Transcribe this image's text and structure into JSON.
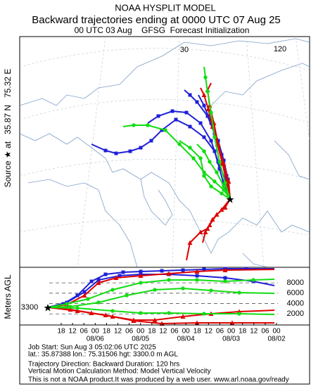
{
  "header": {
    "title": "NOAA HYSPLIT MODEL",
    "subtitle": "Backward trajectories ending at 0000 UTC 07 Aug 25",
    "initialization": "00 UTC 03 Aug    GFSG  Forecast Initialization"
  },
  "source_label": "Source ★ at   35.87 N   75.32 E",
  "map": {
    "grid_labels": [
      "30",
      "120"
    ]
  },
  "vertical_panel": {
    "axis_label": "Meters AGL",
    "start_height_label": "3300",
    "ylim": [
      0,
      11000
    ],
    "yticks": [
      2000,
      4000,
      6000,
      8000
    ],
    "hours": [
      "18",
      "12",
      "06",
      "00",
      "18",
      "12",
      "06",
      "00",
      "18",
      "12",
      "06",
      "00",
      "18",
      "12",
      "06",
      "00",
      "18",
      "12",
      "06",
      "00"
    ],
    "dates": [
      "08/06",
      "08/05",
      "08/04",
      "08/03",
      "08/02"
    ]
  },
  "footer": {
    "lines": [
      "Job Start: Sun Aug  3 05:02:06 UTC 2025",
      "lat.: 35.87388   lon.: 75.31506   hgt: 3300.0 m AGL",
      "Trajectory Direction: Backward       Duration: 120 hrs",
      "Vertical Motion Calculation Method: Model Vertical Velocity",
      "This is not a NOAA product.It was produced by a web user. www.arl.noaa.gov/ready"
    ]
  }
}
